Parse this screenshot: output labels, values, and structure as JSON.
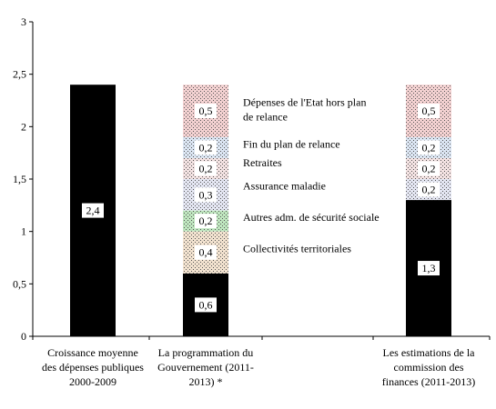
{
  "chart_data": {
    "type": "bar",
    "stacked": true,
    "title": "",
    "xlabel": "",
    "ylabel": "",
    "ylim": [
      0,
      3
    ],
    "yticks": [
      "0",
      "0,5",
      "1",
      "1,5",
      "2",
      "2,5",
      "3"
    ],
    "grid": false,
    "legend": "none",
    "categories": [
      [
        "Croissance moyenne",
        "des dépenses publiques",
        "2000-2009"
      ],
      [
        "La programmation du",
        "Gouvernement (2011-",
        "2013) *"
      ],
      [
        "Les estimations de la",
        "commission des",
        "finances (2011-2013)"
      ]
    ],
    "stacks": [
      {
        "category_index": 0,
        "segments": [
          {
            "value": 2.4,
            "label": "2,4",
            "fill": "solid",
            "color": "#000000"
          }
        ]
      },
      {
        "category_index": 1,
        "segments": [
          {
            "value": 0.6,
            "label": "0,6",
            "fill": "solid",
            "color": "#000000"
          },
          {
            "value": 0.4,
            "label": "0,4",
            "fill": "dots",
            "color": "#f2e2cf"
          },
          {
            "value": 0.2,
            "label": "0,2",
            "fill": "dots",
            "color": "#bfe6bf"
          },
          {
            "value": 0.3,
            "label": "0,3",
            "fill": "dots",
            "color": "#e4e6f2"
          },
          {
            "value": 0.2,
            "label": "0,2",
            "fill": "dots",
            "color": "#f3e2e2"
          },
          {
            "value": 0.2,
            "label": "0,2",
            "fill": "dots",
            "color": "#dbe5f2"
          },
          {
            "value": 0.5,
            "label": "0,5",
            "fill": "dots",
            "color": "#f3d1d1"
          }
        ]
      },
      {
        "category_index": 2,
        "segments": [
          {
            "value": 1.3,
            "label": "1,3",
            "fill": "solid",
            "color": "#000000"
          },
          {
            "value": 0.2,
            "label": "0,2",
            "fill": "dots",
            "color": "#e4e6f2"
          },
          {
            "value": 0.2,
            "label": "0,2",
            "fill": "dots",
            "color": "#f3e2e2"
          },
          {
            "value": 0.2,
            "label": "0,2",
            "fill": "dots",
            "color": "#dbe5f2"
          },
          {
            "value": 0.5,
            "label": "0,5",
            "fill": "dots",
            "color": "#f3d1d1"
          }
        ]
      }
    ],
    "annotations": [
      {
        "text": [
          "Dépenses de l'Etat hors plan",
          "de relance"
        ],
        "y_value": 2.2
      },
      {
        "text": [
          "Fin du plan de relance"
        ],
        "y_value": 1.8
      },
      {
        "text": [
          "Retraites"
        ],
        "y_value": 1.62
      },
      {
        "text": [
          "Assurance maladie"
        ],
        "y_value": 1.4
      },
      {
        "text": [
          "Autres adm. de sécurité sociale"
        ],
        "y_value": 1.1
      },
      {
        "text": [
          "Collectivités territoriales"
        ],
        "y_value": 0.8
      }
    ]
  }
}
